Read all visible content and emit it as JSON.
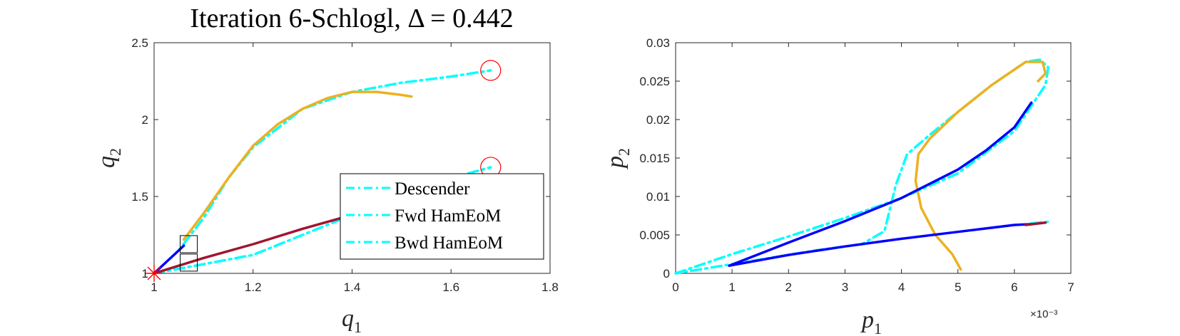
{
  "chart_data": [
    {
      "type": "line",
      "title": "Iteration 6-Schlogl, Δ = 0.442",
      "xlabel": "q1",
      "ylabel": "q2",
      "xlim": [
        1,
        1.8
      ],
      "ylim": [
        1,
        2.5
      ],
      "xticks": [
        "1",
        "1.2",
        "1.4",
        "1.6",
        "1.8"
      ],
      "yticks": [
        "1",
        "1.5",
        "2",
        "2.5"
      ],
      "legend": {
        "position": "lower-right",
        "entries": [
          "Descender",
          "Fwd HamEoM",
          "Bwd HamEoM"
        ]
      },
      "series": [
        {
          "name": "Bwd HamEoM",
          "color": "#00ffff",
          "style": "dash-dot",
          "x": [
            1.0,
            1.05,
            1.1,
            1.15,
            1.2,
            1.3,
            1.4,
            1.5,
            1.6,
            1.68
          ],
          "y": [
            1.0,
            1.15,
            1.36,
            1.62,
            1.82,
            2.07,
            2.18,
            2.24,
            2.28,
            2.32
          ]
        },
        {
          "name": "Fwd HamEoM",
          "color": "#00ffff",
          "style": "dash-dot",
          "x": [
            1.0,
            1.2,
            1.4,
            1.6,
            1.68
          ],
          "y": [
            1.0,
            1.12,
            1.38,
            1.62,
            1.69
          ]
        },
        {
          "name": "",
          "color": "#edb120",
          "style": "solid",
          "x": [
            1.06,
            1.1,
            1.15,
            1.2,
            1.25,
            1.3,
            1.35,
            1.4,
            1.45,
            1.5,
            1.52
          ],
          "y": [
            1.22,
            1.39,
            1.62,
            1.83,
            1.97,
            2.07,
            2.14,
            2.18,
            2.18,
            2.16,
            2.15
          ]
        },
        {
          "name": "",
          "color": "#0000ff",
          "style": "solid",
          "x": [
            1.0,
            1.02,
            1.04,
            1.06
          ],
          "y": [
            1.0,
            1.06,
            1.12,
            1.18
          ]
        },
        {
          "name": "",
          "color": "#a2142f",
          "style": "solid",
          "x": [
            1.0,
            1.1,
            1.2,
            1.3,
            1.4,
            1.43
          ],
          "y": [
            1.0,
            1.1,
            1.19,
            1.29,
            1.38,
            1.4
          ]
        }
      ],
      "markers": [
        {
          "type": "star",
          "color": "#ff0000",
          "x": 1.0,
          "y": 1.0
        },
        {
          "type": "circle",
          "color": "#ff0000",
          "x": 1.68,
          "y": 2.32
        },
        {
          "type": "circle",
          "color": "#ff0000",
          "x": 1.68,
          "y": 1.69
        },
        {
          "type": "square",
          "color": "#000000",
          "x": 1.07,
          "y": 1.19
        },
        {
          "type": "square",
          "color": "#000000",
          "x": 1.07,
          "y": 1.07
        }
      ]
    },
    {
      "type": "line",
      "title": "",
      "xlabel": "p1",
      "ylabel": "p2",
      "x_exponent": "×10⁻³",
      "xlim": [
        0,
        7
      ],
      "ylim": [
        0,
        0.03
      ],
      "xticks": [
        "0",
        "1",
        "2",
        "3",
        "4",
        "5",
        "6",
        "7"
      ],
      "yticks": [
        "0",
        "0.005",
        "0.01",
        "0.015",
        "0.02",
        "0.025",
        "0.03"
      ],
      "series": [
        {
          "name": "",
          "color": "#00ffff",
          "style": "dash-dot",
          "x": [
            0.0,
            1.0,
            2.0,
            3.0,
            4.0,
            5.0,
            6.0,
            6.55,
            6.6,
            6.45,
            6.2,
            5.6,
            5.0,
            4.5,
            4.1,
            3.9,
            3.7,
            3.3,
            2.5,
            1.5,
            0.5,
            0.0
          ],
          "y": [
            0.0,
            0.0025,
            0.0048,
            0.0072,
            0.0098,
            0.013,
            0.0185,
            0.0245,
            0.0268,
            0.0278,
            0.0275,
            0.0245,
            0.021,
            0.018,
            0.0155,
            0.0115,
            0.0055,
            0.0038,
            0.003,
            0.0018,
            0.0006,
            0.0
          ]
        },
        {
          "name": "",
          "color": "#00ffff",
          "style": "dash-dot",
          "x": [
            6.3,
            6.6
          ],
          "y": [
            0.0065,
            0.0067
          ]
        },
        {
          "name": "",
          "color": "#edb120",
          "style": "solid",
          "x": [
            5.05,
            4.9,
            4.6,
            4.35,
            4.25,
            4.3,
            4.5,
            5.0,
            5.6,
            6.2,
            6.5,
            6.55,
            6.42
          ],
          "y": [
            0.0005,
            0.0025,
            0.005,
            0.0085,
            0.012,
            0.0155,
            0.0175,
            0.021,
            0.0245,
            0.0275,
            0.0275,
            0.026,
            0.025
          ]
        },
        {
          "name": "",
          "color": "#0000ff",
          "style": "solid",
          "x": [
            0.95,
            2.0,
            3.0,
            4.0,
            5.0,
            5.5,
            6.0,
            6.3
          ],
          "y": [
            0.001,
            0.004,
            0.0068,
            0.0098,
            0.0135,
            0.016,
            0.019,
            0.0222
          ]
        },
        {
          "name": "",
          "color": "#0000ff",
          "style": "solid",
          "x": [
            0.95,
            2.0,
            3.0,
            4.0,
            5.0,
            6.0,
            6.3
          ],
          "y": [
            0.001,
            0.0024,
            0.0035,
            0.0045,
            0.0054,
            0.0063,
            0.0064
          ]
        },
        {
          "name": "",
          "color": "#a2142f",
          "style": "solid",
          "x": [
            6.2,
            6.55
          ],
          "y": [
            0.0063,
            0.0066
          ]
        }
      ]
    }
  ]
}
